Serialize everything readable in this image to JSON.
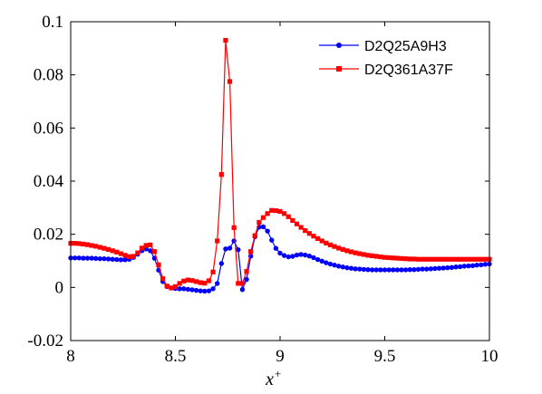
{
  "chart_data": {
    "type": "line",
    "xlabel": "x",
    "xlabel_superscript": "+",
    "ylabel": "",
    "xlim": [
      8,
      10
    ],
    "ylim": [
      -0.02,
      0.1
    ],
    "x_ticks": [
      8,
      8.5,
      9,
      9.5,
      10
    ],
    "x_tick_labels": [
      "8",
      "8.5",
      "9",
      "9.5",
      "10"
    ],
    "y_ticks": [
      -0.02,
      0,
      0.02,
      0.04,
      0.06,
      0.08,
      0.1
    ],
    "y_tick_labels": [
      "-0.02",
      "0",
      "0.02",
      "0.04",
      "0.06",
      "0.08",
      "0.1"
    ],
    "grid": false,
    "legend_position": "top-right",
    "series": [
      {
        "name": "D2Q25A9H3",
        "color": "#0000ff",
        "marker": "circle",
        "x": [
          8.0,
          8.02,
          8.04,
          8.06,
          8.08,
          8.1,
          8.12,
          8.14,
          8.16,
          8.18,
          8.2,
          8.22,
          8.24,
          8.26,
          8.28,
          8.3,
          8.32,
          8.34,
          8.36,
          8.38,
          8.4,
          8.42,
          8.44,
          8.46,
          8.48,
          8.5,
          8.52,
          8.54,
          8.56,
          8.58,
          8.6,
          8.62,
          8.64,
          8.66,
          8.68,
          8.7,
          8.72,
          8.74,
          8.76,
          8.78,
          8.8,
          8.82,
          8.84,
          8.86,
          8.88,
          8.9,
          8.92,
          8.94,
          8.96,
          8.98,
          9.0,
          9.02,
          9.04,
          9.06,
          9.08,
          9.1,
          9.12,
          9.14,
          9.16,
          9.18,
          9.2,
          9.22,
          9.24,
          9.26,
          9.28,
          9.3,
          9.32,
          9.34,
          9.36,
          9.38,
          9.4,
          9.42,
          9.44,
          9.46,
          9.48,
          9.5,
          9.52,
          9.54,
          9.56,
          9.58,
          9.6,
          9.62,
          9.64,
          9.66,
          9.68,
          9.7,
          9.72,
          9.74,
          9.76,
          9.78,
          9.8,
          9.82,
          9.84,
          9.86,
          9.88,
          9.9,
          9.92,
          9.94,
          9.96,
          9.98,
          10.0
        ],
        "y": [
          0.0111,
          0.0111,
          0.0111,
          0.011,
          0.011,
          0.011,
          0.0109,
          0.0108,
          0.0108,
          0.0107,
          0.0106,
          0.0105,
          0.0104,
          0.0104,
          0.0106,
          0.0113,
          0.0125,
          0.0138,
          0.0145,
          0.0138,
          0.011,
          0.0065,
          0.0022,
          0.0003,
          -0.0002,
          -0.0004,
          -0.0005,
          -0.0005,
          -0.0007,
          -0.0009,
          -0.0011,
          -0.0013,
          -0.0014,
          -0.0013,
          -0.0005,
          0.0015,
          0.009,
          0.0145,
          0.0148,
          0.0175,
          0.0142,
          -0.0008,
          0.003,
          0.0118,
          0.0191,
          0.0227,
          0.0228,
          0.0212,
          0.0178,
          0.0147,
          0.0129,
          0.012,
          0.0115,
          0.0117,
          0.0122,
          0.0124,
          0.0122,
          0.0118,
          0.0112,
          0.0105,
          0.0099,
          0.0093,
          0.0088,
          0.0084,
          0.008,
          0.0077,
          0.0074,
          0.0072,
          0.007,
          0.0069,
          0.0068,
          0.0067,
          0.0066,
          0.0066,
          0.0066,
          0.0066,
          0.0066,
          0.0066,
          0.0066,
          0.0066,
          0.0066,
          0.0067,
          0.0067,
          0.0068,
          0.0069,
          0.0069,
          0.007,
          0.0071,
          0.0072,
          0.0073,
          0.0074,
          0.0075,
          0.0077,
          0.0078,
          0.008,
          0.0081,
          0.0082,
          0.0084,
          0.0085,
          0.0087,
          0.0088
        ]
      },
      {
        "name": "D2Q361A37F",
        "color": "#ff0000",
        "marker": "square",
        "x": [
          8.0,
          8.02,
          8.04,
          8.06,
          8.08,
          8.1,
          8.12,
          8.14,
          8.16,
          8.18,
          8.2,
          8.22,
          8.24,
          8.26,
          8.28,
          8.3,
          8.32,
          8.34,
          8.36,
          8.38,
          8.4,
          8.42,
          8.44,
          8.46,
          8.48,
          8.5,
          8.52,
          8.54,
          8.56,
          8.58,
          8.6,
          8.62,
          8.64,
          8.66,
          8.68,
          8.7,
          8.72,
          8.74,
          8.76,
          8.78,
          8.8,
          8.82,
          8.84,
          8.86,
          8.88,
          8.9,
          8.92,
          8.94,
          8.96,
          8.98,
          9.0,
          9.02,
          9.04,
          9.06,
          9.08,
          9.1,
          9.12,
          9.14,
          9.16,
          9.18,
          9.2,
          9.22,
          9.24,
          9.26,
          9.28,
          9.3,
          9.32,
          9.34,
          9.36,
          9.38,
          9.4,
          9.42,
          9.44,
          9.46,
          9.48,
          9.5,
          9.52,
          9.54,
          9.56,
          9.58,
          9.6,
          9.62,
          9.64,
          9.66,
          9.68,
          9.7,
          9.72,
          9.74,
          9.76,
          9.78,
          9.8,
          9.82,
          9.84,
          9.86,
          9.88,
          9.9,
          9.92,
          9.94,
          9.96,
          9.98,
          10.0
        ],
        "y": [
          0.0166,
          0.0166,
          0.0165,
          0.0163,
          0.0161,
          0.0158,
          0.0155,
          0.0151,
          0.0147,
          0.0143,
          0.0138,
          0.0133,
          0.0127,
          0.0121,
          0.0116,
          0.0117,
          0.013,
          0.0148,
          0.0158,
          0.016,
          0.0135,
          0.0085,
          0.0033,
          0.0005,
          -0.0002,
          0.0003,
          0.0015,
          0.0024,
          0.0028,
          0.0026,
          0.0022,
          0.0018,
          0.0016,
          0.0025,
          0.0058,
          0.0175,
          0.0425,
          0.093,
          0.0775,
          0.0225,
          0.0015,
          0.0015,
          0.006,
          0.0135,
          0.0195,
          0.0245,
          0.0263,
          0.0278,
          0.029,
          0.0289,
          0.0286,
          0.0278,
          0.0266,
          0.0252,
          0.0239,
          0.0226,
          0.0214,
          0.0203,
          0.0193,
          0.0184,
          0.0175,
          0.0167,
          0.016,
          0.0154,
          0.0148,
          0.0143,
          0.0138,
          0.0134,
          0.013,
          0.0127,
          0.0124,
          0.0121,
          0.0119,
          0.0117,
          0.0115,
          0.0113,
          0.0112,
          0.0111,
          0.011,
          0.0109,
          0.0108,
          0.0107,
          0.0107,
          0.0106,
          0.0106,
          0.0106,
          0.0106,
          0.0106,
          0.0106,
          0.0106,
          0.0106,
          0.0106,
          0.0106,
          0.0106,
          0.0106,
          0.0106,
          0.0106,
          0.0106,
          0.0106,
          0.0106,
          0.0106
        ]
      }
    ]
  }
}
